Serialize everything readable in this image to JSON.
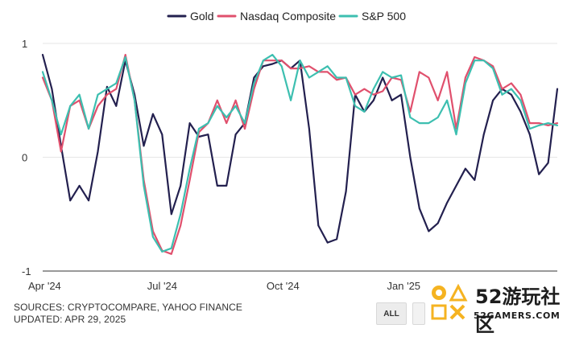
{
  "legend": [
    {
      "name": "Gold",
      "color": "#23204f"
    },
    {
      "name": "Nasdaq Composite",
      "color": "#e0506d"
    },
    {
      "name": "S&P 500",
      "color": "#3dbfb0"
    }
  ],
  "footer": {
    "source_line": "SOURCES: CRYPTOCOMPARE, YAHOO FINANCE",
    "updated_line": "UPDATED: APR 29, 2025",
    "all_button": "ALL"
  },
  "watermark": {
    "big_text": "52游玩社区",
    "small_text": "52GAMERS.COM"
  },
  "chart_data": {
    "type": "line",
    "ylim": [
      -1,
      1
    ],
    "yticks": [
      "1",
      "0",
      "-1"
    ],
    "xtick_labels": [
      "Apr '24",
      "Jul '24",
      "Oct '24",
      "Jan '25"
    ],
    "grid": true,
    "legend_position": "top-center",
    "x": [
      "2024-04-01",
      "2024-04-08",
      "2024-04-15",
      "2024-04-22",
      "2024-04-29",
      "2024-05-06",
      "2024-05-13",
      "2024-05-20",
      "2024-05-27",
      "2024-06-03",
      "2024-06-10",
      "2024-06-17",
      "2024-06-24",
      "2024-07-01",
      "2024-07-08",
      "2024-07-15",
      "2024-07-22",
      "2024-07-29",
      "2024-08-05",
      "2024-08-12",
      "2024-08-19",
      "2024-08-26",
      "2024-09-02",
      "2024-09-09",
      "2024-09-16",
      "2024-09-23",
      "2024-09-30",
      "2024-10-07",
      "2024-10-14",
      "2024-10-21",
      "2024-10-28",
      "2024-11-04",
      "2024-11-11",
      "2024-11-18",
      "2024-11-25",
      "2024-12-02",
      "2024-12-09",
      "2024-12-16",
      "2024-12-23",
      "2024-12-30",
      "2025-01-06",
      "2025-01-13",
      "2025-01-20",
      "2025-01-27",
      "2025-02-03",
      "2025-02-10",
      "2025-02-17",
      "2025-02-24",
      "2025-03-03",
      "2025-03-10",
      "2025-03-17",
      "2025-03-24",
      "2025-03-31",
      "2025-04-07",
      "2025-04-14",
      "2025-04-21",
      "2025-04-28"
    ],
    "series": [
      {
        "name": "Gold",
        "color": "#23204f",
        "values": [
          0.9,
          0.6,
          0.1,
          -0.38,
          -0.25,
          -0.38,
          0.05,
          0.62,
          0.45,
          0.85,
          0.55,
          0.1,
          0.38,
          0.2,
          -0.5,
          -0.25,
          0.3,
          0.18,
          0.2,
          -0.25,
          -0.25,
          0.2,
          0.3,
          0.7,
          0.8,
          0.82,
          0.85,
          0.78,
          0.85,
          0.25,
          -0.6,
          -0.75,
          -0.72,
          -0.3,
          0.55,
          0.4,
          0.5,
          0.7,
          0.5,
          0.55,
          0.0,
          -0.45,
          -0.65,
          -0.58,
          -0.4,
          -0.25,
          -0.1,
          -0.2,
          0.2,
          0.5,
          0.6,
          0.55,
          0.4,
          0.2,
          -0.15,
          -0.05,
          0.6
        ]
      },
      {
        "name": "Nasdaq Composite",
        "color": "#e0506d",
        "values": [
          0.7,
          0.5,
          0.05,
          0.45,
          0.5,
          0.25,
          0.45,
          0.55,
          0.6,
          0.9,
          0.5,
          -0.2,
          -0.65,
          -0.82,
          -0.85,
          -0.6,
          -0.2,
          0.22,
          0.3,
          0.5,
          0.3,
          0.5,
          0.25,
          0.6,
          0.85,
          0.85,
          0.85,
          0.78,
          0.78,
          0.8,
          0.75,
          0.75,
          0.68,
          0.7,
          0.55,
          0.6,
          0.55,
          0.58,
          0.7,
          0.68,
          0.4,
          0.75,
          0.7,
          0.5,
          0.75,
          0.25,
          0.7,
          0.88,
          0.85,
          0.8,
          0.6,
          0.65,
          0.55,
          0.3,
          0.3,
          0.28,
          0.3
        ]
      },
      {
        "name": "S&P 500",
        "color": "#3dbfb0",
        "values": [
          0.75,
          0.5,
          0.2,
          0.45,
          0.55,
          0.25,
          0.55,
          0.6,
          0.65,
          0.88,
          0.5,
          -0.25,
          -0.7,
          -0.83,
          -0.8,
          -0.5,
          -0.1,
          0.25,
          0.3,
          0.45,
          0.35,
          0.45,
          0.3,
          0.65,
          0.85,
          0.9,
          0.8,
          0.5,
          0.85,
          0.7,
          0.75,
          0.8,
          0.7,
          0.7,
          0.45,
          0.4,
          0.6,
          0.75,
          0.7,
          0.72,
          0.35,
          0.3,
          0.3,
          0.35,
          0.5,
          0.2,
          0.65,
          0.85,
          0.85,
          0.78,
          0.55,
          0.6,
          0.5,
          0.25,
          0.28,
          0.3,
          0.28
        ]
      }
    ]
  }
}
